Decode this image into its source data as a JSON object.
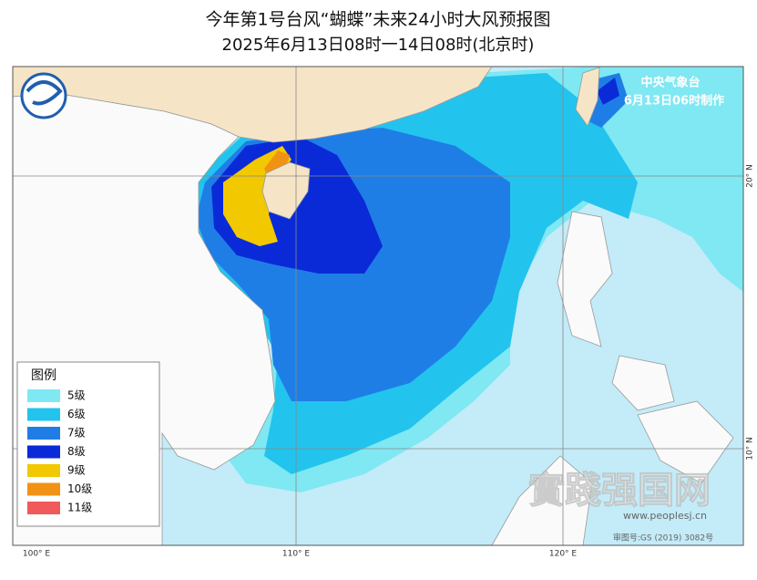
{
  "header": {
    "title": "今年第1号台风“蝴蝶”未来24小时大风预报图",
    "subtitle": "2025年6月13日08时一14日08时(北京时)"
  },
  "agency": {
    "name": "中央气象台",
    "issued": "6月13日06时制作"
  },
  "legend": {
    "title": "图例",
    "items": [
      {
        "label": "5级",
        "color": "#7fe8f2"
      },
      {
        "label": "6级",
        "color": "#22c4ee"
      },
      {
        "label": "7级",
        "color": "#1f7ee6"
      },
      {
        "label": "8级",
        "color": "#0a2ad8"
      },
      {
        "label": "9级",
        "color": "#f2c800"
      },
      {
        "label": "10级",
        "color": "#f29214"
      },
      {
        "label": "11级",
        "color": "#f05a5a"
      }
    ]
  },
  "axes": {
    "longitudes": [
      "100° E",
      "110° E",
      "120° E"
    ],
    "latitudes": [
      "20° N",
      "10° N"
    ]
  },
  "watermark": {
    "text": "實踐强国网",
    "url": "www.peoplesj.cn"
  },
  "map_credit": "审图号:GS (2019) 3082号"
}
